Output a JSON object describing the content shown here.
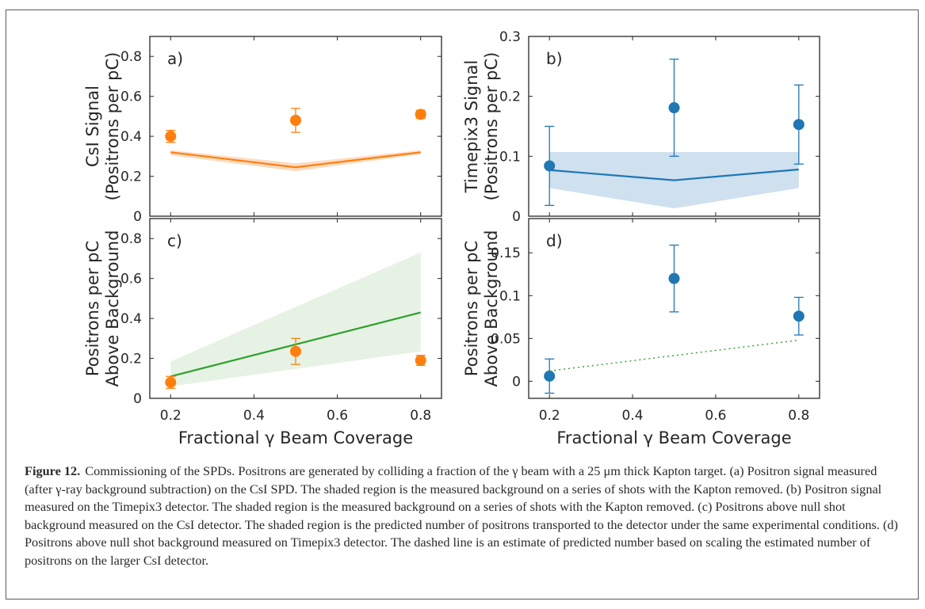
{
  "figure": {
    "caption_label": "Figure 12.",
    "caption_text": "Commissioning of the SPDs. Positrons are generated by colliding a fraction of the γ beam with a 25 μm thick Kapton target. (a) Positron signal measured (after γ-ray background subtraction) on the CsI SPD. The shaded region is the measured background on a series of shots with the Kapton removed. (b) Positron signal measured on the Timepix3 detector. The shaded region is the measured background on a series of shots with the Kapton removed. (c) Positrons above null shot background measured on the CsI detector. The shaded region is the predicted number of positrons transported to the detector under the same experimental conditions. (d) Positrons above null shot background measured on Timepix3 detector. The dashed line is an estimate of predicted number based on scaling the estimated number of positrons on the larger CsI detector."
  },
  "colors": {
    "orange": "#ff7f0e",
    "orange_fill": "#fcdcc1",
    "blue": "#1f77b4",
    "blue_fill": "#cfe0ef",
    "green": "#2ca02c",
    "green_fill": "#e6f2e3",
    "axis": "#262626"
  },
  "chart_data": [
    {
      "panel": "a)",
      "type": "scatter",
      "ylabel": [
        "CsI Signal",
        "(Positrons per pC)"
      ],
      "xlabel": "",
      "xlim": [
        0.15,
        0.85
      ],
      "ylim": [
        0,
        0.9
      ],
      "xticks": [
        0.2,
        0.4,
        0.6,
        0.8
      ],
      "xticklabels": [],
      "yticks": [
        0,
        0.2,
        0.4,
        0.6,
        0.8
      ],
      "yticklabels": [
        "0",
        "0.2",
        "0.4",
        "0.6",
        "0.8"
      ],
      "grid": false,
      "marker_color": "orange",
      "points": [
        {
          "x": 0.2,
          "y": 0.4,
          "err_low": 0.37,
          "err_high": 0.43
        },
        {
          "x": 0.5,
          "y": 0.48,
          "err_low": 0.42,
          "err_high": 0.54
        },
        {
          "x": 0.8,
          "y": 0.51,
          "err_low": 0.49,
          "err_high": 0.53
        }
      ],
      "line": {
        "color": "orange",
        "style": "solid",
        "x": [
          0.2,
          0.5,
          0.8
        ],
        "y": [
          0.32,
          0.245,
          0.32
        ]
      },
      "band": {
        "color": "orange_fill",
        "x": [
          0.2,
          0.5,
          0.8
        ],
        "low": [
          0.305,
          0.225,
          0.31
        ],
        "high": [
          0.33,
          0.265,
          0.33
        ]
      }
    },
    {
      "panel": "b)",
      "type": "scatter",
      "ylabel": [
        "Timepix3 Signal",
        "(Positrons per pC)"
      ],
      "xlabel": "",
      "xlim": [
        0.15,
        0.85
      ],
      "ylim": [
        0,
        0.3
      ],
      "xticks": [
        0.2,
        0.4,
        0.6,
        0.8
      ],
      "xticklabels": [],
      "yticks": [
        0,
        0.1,
        0.2,
        0.3
      ],
      "yticklabels": [
        "0",
        "0.1",
        "0.2",
        "0.3"
      ],
      "grid": false,
      "marker_color": "blue",
      "points": [
        {
          "x": 0.2,
          "y": 0.084,
          "err_low": 0.018,
          "err_high": 0.15
        },
        {
          "x": 0.5,
          "y": 0.181,
          "err_low": 0.1,
          "err_high": 0.262
        },
        {
          "x": 0.8,
          "y": 0.153,
          "err_low": 0.087,
          "err_high": 0.219
        }
      ],
      "line": {
        "color": "blue",
        "style": "solid",
        "x": [
          0.2,
          0.5,
          0.8
        ],
        "y": [
          0.077,
          0.06,
          0.078
        ]
      },
      "band": {
        "color": "blue_fill",
        "x": [
          0.2,
          0.5,
          0.8
        ],
        "low": [
          0.047,
          0.013,
          0.047
        ],
        "high": [
          0.107,
          0.107,
          0.107
        ]
      }
    },
    {
      "panel": "c)",
      "type": "scatter",
      "ylabel": [
        "Positrons per pC",
        "Above Background"
      ],
      "xlabel": "Fractional γ Beam Coverage",
      "xlim": [
        0.15,
        0.85
      ],
      "ylim": [
        0,
        0.9
      ],
      "xticks": [
        0.2,
        0.4,
        0.6,
        0.8
      ],
      "xticklabels": [
        "0.2",
        "0.4",
        "0.6",
        "0.8"
      ],
      "yticks": [
        0,
        0.2,
        0.4,
        0.6,
        0.8
      ],
      "yticklabels": [
        "0",
        "0.2",
        "0.4",
        "0.6",
        "0.8"
      ],
      "grid": false,
      "marker_color": "orange",
      "points": [
        {
          "x": 0.2,
          "y": 0.08,
          "err_low": 0.05,
          "err_high": 0.11
        },
        {
          "x": 0.5,
          "y": 0.235,
          "err_low": 0.17,
          "err_high": 0.3
        },
        {
          "x": 0.8,
          "y": 0.19,
          "err_low": 0.165,
          "err_high": 0.215
        }
      ],
      "line": {
        "color": "green",
        "style": "solid",
        "x": [
          0.2,
          0.8
        ],
        "y": [
          0.11,
          0.43
        ]
      },
      "band": {
        "color": "green_fill",
        "x": [
          0.2,
          0.8
        ],
        "low": [
          0.06,
          0.235
        ],
        "high": [
          0.185,
          0.73
        ]
      }
    },
    {
      "panel": "d)",
      "type": "scatter",
      "ylabel": [
        "Positrons per pC",
        "Above Background"
      ],
      "xlabel": "Fractional γ Beam Coverage",
      "xlim": [
        0.15,
        0.85
      ],
      "ylim": [
        -0.02,
        0.19
      ],
      "xticks": [
        0.2,
        0.4,
        0.6,
        0.8
      ],
      "xticklabels": [
        "0.2",
        "0.4",
        "0.6",
        "0.8"
      ],
      "yticks": [
        0,
        0.05,
        0.1,
        0.15
      ],
      "yticklabels": [
        "0",
        "0.05",
        "0.1",
        "0.15"
      ],
      "grid": false,
      "marker_color": "blue",
      "points": [
        {
          "x": 0.2,
          "y": 0.006,
          "err_low": -0.014,
          "err_high": 0.026
        },
        {
          "x": 0.5,
          "y": 0.12,
          "err_low": 0.081,
          "err_high": 0.159
        },
        {
          "x": 0.8,
          "y": 0.076,
          "err_low": 0.054,
          "err_high": 0.098
        }
      ],
      "line": {
        "color": "green",
        "style": "dotted",
        "x": [
          0.2,
          0.8
        ],
        "y": [
          0.012,
          0.048
        ]
      },
      "band": null
    }
  ]
}
